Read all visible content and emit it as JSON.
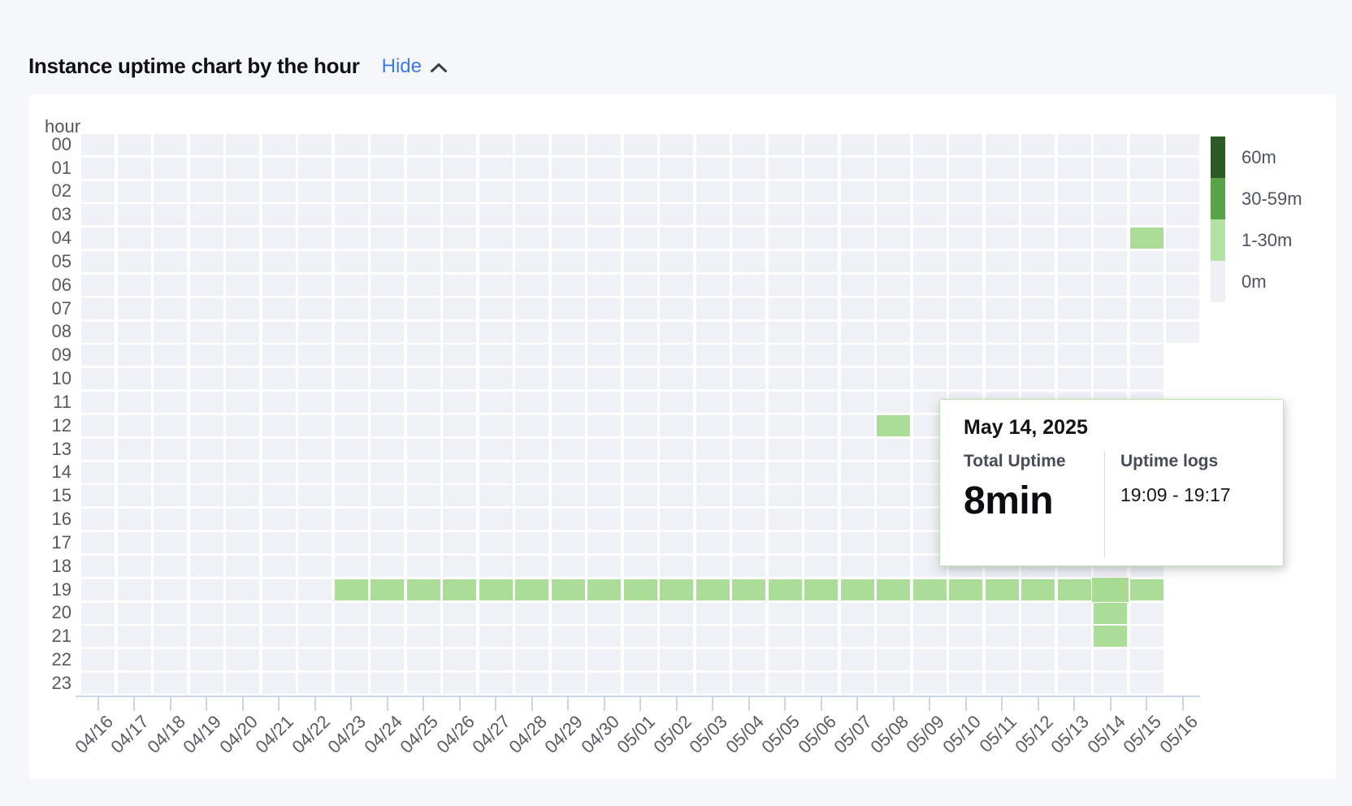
{
  "header": {
    "title": "Instance uptime chart by the hour",
    "toggle_label": "Hide",
    "toggle_icon": "chevron-up"
  },
  "chart_data": {
    "type": "heatmap",
    "y_axis_title": "hour",
    "hours": [
      "00",
      "01",
      "02",
      "03",
      "04",
      "05",
      "06",
      "07",
      "08",
      "09",
      "10",
      "11",
      "12",
      "13",
      "14",
      "15",
      "16",
      "17",
      "18",
      "19",
      "20",
      "21",
      "22",
      "23"
    ],
    "dates": [
      "04/16",
      "04/17",
      "04/18",
      "04/19",
      "04/20",
      "04/21",
      "04/22",
      "04/23",
      "04/24",
      "04/25",
      "04/26",
      "04/27",
      "04/28",
      "04/29",
      "04/30",
      "05/01",
      "05/02",
      "05/03",
      "05/04",
      "05/05",
      "05/06",
      "05/07",
      "05/08",
      "05/09",
      "05/10",
      "05/11",
      "05/12",
      "05/13",
      "05/14",
      "05/15",
      "05/16"
    ],
    "last_date_max_hour": 8,
    "legend": [
      {
        "label": "60m",
        "color": "#2d5a26"
      },
      {
        "label": "30-59m",
        "color": "#57a345"
      },
      {
        "label": "1-30m",
        "color": "#b3e0a3"
      },
      {
        "label": "0m",
        "color": "#eef0f6"
      }
    ],
    "uptime_cells": [
      {
        "hour": 4,
        "bucket": "1-30m",
        "dates": [
          "05/15"
        ]
      },
      {
        "hour": 12,
        "bucket": "1-30m",
        "dates": [
          "05/08"
        ]
      },
      {
        "hour": 19,
        "bucket": "1-30m",
        "dates": [
          "04/23",
          "04/24",
          "04/25",
          "04/26",
          "04/27",
          "04/28",
          "04/29",
          "04/30",
          "05/01",
          "05/02",
          "05/03",
          "05/04",
          "05/05",
          "05/06",
          "05/07",
          "05/08",
          "05/09",
          "05/10",
          "05/11",
          "05/12",
          "05/13",
          "05/14",
          "05/15"
        ]
      },
      {
        "hour": 20,
        "bucket": "1-30m",
        "dates": [
          "05/14"
        ]
      },
      {
        "hour": 21,
        "bucket": "1-30m",
        "dates": [
          "05/14"
        ]
      }
    ],
    "hovered_cell": {
      "date": "05/14",
      "hour": 19
    }
  },
  "tooltip": {
    "date": "May 14, 2025",
    "total_uptime_label": "Total Uptime",
    "total_uptime_value": "8min",
    "logs_label": "Uptime logs",
    "logs_value": "19:09 - 19:17"
  },
  "colors": {
    "page_background": "#f6f7fa",
    "card_background": "#ffffff",
    "cell_empty": "#f0f1f7",
    "cell_uptime_green": "#abdd98",
    "legend_green_dark": "#2d5a26",
    "legend_green_mid": "#57a345",
    "legend_green_light": "#b3e0a3",
    "link_blue": "#3b7af0",
    "axis_line": "#ccd4e8",
    "tooltip_border": "#bfe2b1"
  }
}
